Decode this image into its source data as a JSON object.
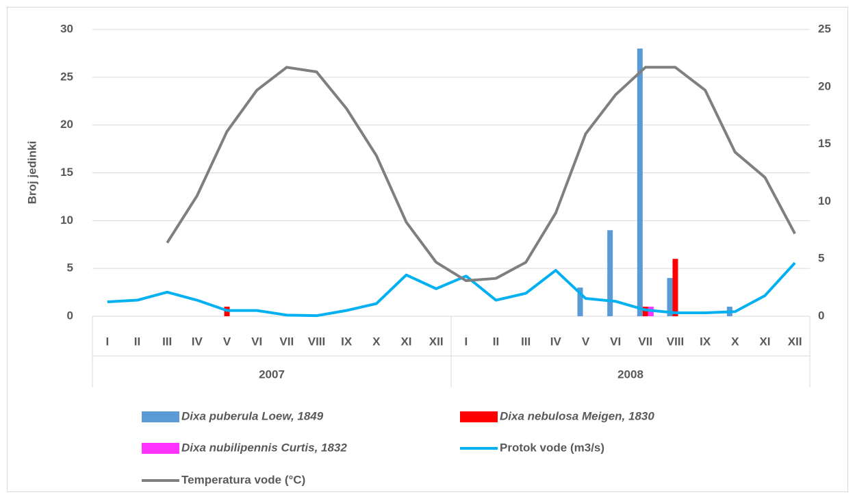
{
  "chart_data": {
    "type": "bar",
    "y_label": "Broj jedinki",
    "categories": [
      "I",
      "II",
      "III",
      "IV",
      "V",
      "VI",
      "VII",
      "VIII",
      "IX",
      "X",
      "XI",
      "XII",
      "I",
      "II",
      "III",
      "IV",
      "V",
      "VI",
      "VII",
      "VIII",
      "IX",
      "X",
      "XI",
      "XII"
    ],
    "category_groups": [
      "2007",
      "2008"
    ],
    "ylim": [
      0,
      30
    ],
    "yticks": [
      0,
      5,
      10,
      15,
      20,
      25,
      30
    ],
    "y2lim": [
      0,
      25
    ],
    "y2ticks": [
      0,
      5,
      10,
      15,
      20,
      25
    ],
    "grid": true,
    "series": [
      {
        "name": "Dixa puberula Loew, 1849",
        "type": "bar",
        "color": "#5b9bd5",
        "values": [
          0,
          0,
          0,
          0,
          0,
          0,
          0,
          0,
          0,
          0,
          0,
          0,
          0,
          0,
          0,
          0,
          3,
          9,
          28,
          4,
          0,
          1,
          0,
          0
        ]
      },
      {
        "name": "Dixa nebulosa Meigen, 1830",
        "type": "bar",
        "color": "#ff0000",
        "values": [
          0,
          0,
          0,
          0,
          1,
          0,
          0,
          0,
          0,
          0,
          0,
          0,
          0,
          0,
          0,
          0,
          0,
          0,
          1,
          6,
          0,
          0,
          0,
          0
        ]
      },
      {
        "name": "Dixa nubilipennis Curtis, 1832",
        "type": "bar",
        "color": "#ff33ff",
        "values": [
          0,
          0,
          0,
          0,
          0,
          0,
          0,
          0,
          0,
          0,
          0,
          0,
          0,
          0,
          0,
          0,
          0,
          0,
          1,
          0,
          0,
          0,
          0,
          0
        ]
      },
      {
        "name": "Protok vode (m3/s)",
        "type": "line",
        "axis": "y2",
        "color": "#00b0f0",
        "values": [
          1.25,
          1.4,
          2.1,
          1.4,
          0.5,
          0.5,
          0.1,
          0.05,
          0.5,
          1.1,
          3.6,
          2.4,
          3.5,
          1.4,
          2.0,
          4.0,
          1.55,
          1.3,
          0.55,
          0.3,
          0.3,
          0.4,
          1.8,
          4.65
        ]
      },
      {
        "name": "Temperatura vode (°C)",
        "type": "line",
        "axis": "y2",
        "color": "#7f7f7f",
        "values": [
          null,
          null,
          6.4,
          10.5,
          16.1,
          19.7,
          21.7,
          21.3,
          18.1,
          14.0,
          8.2,
          4.7,
          3.1,
          3.3,
          4.7,
          9.0,
          15.9,
          19.3,
          21.7,
          21.7,
          19.7,
          14.3,
          12.1,
          7.2
        ]
      }
    ]
  }
}
